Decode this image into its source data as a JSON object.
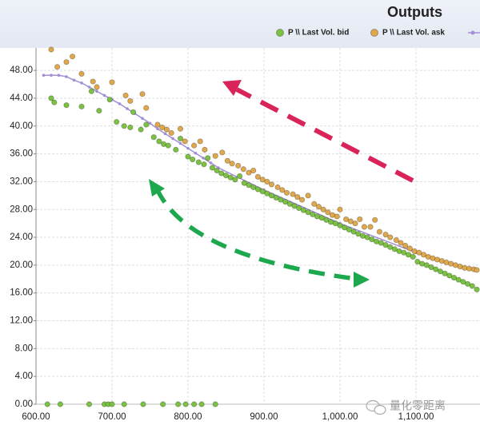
{
  "chart_data": {
    "type": "scatter",
    "title": "Outputs",
    "xlim": [
      600,
      1180
    ],
    "ylim": [
      0,
      51
    ],
    "grid": true,
    "xticks": [
      {
        "value": 600,
        "label": "600.00"
      },
      {
        "value": 700,
        "label": "700.00"
      },
      {
        "value": 800,
        "label": "800.00"
      },
      {
        "value": 900,
        "label": "900.00"
      },
      {
        "value": 1000,
        "label": "1,000.00"
      },
      {
        "value": 1100,
        "label": "1,100.00"
      }
    ],
    "yticks": [
      {
        "value": 0,
        "label": "0.00"
      },
      {
        "value": 4,
        "label": "4.00"
      },
      {
        "value": 8,
        "label": "8.00"
      },
      {
        "value": 12,
        "label": "12.00"
      },
      {
        "value": 16,
        "label": "16.00"
      },
      {
        "value": 20,
        "label": "20.00"
      },
      {
        "value": 24,
        "label": "24.00"
      },
      {
        "value": 28,
        "label": "28.00"
      },
      {
        "value": 32,
        "label": "32.00"
      },
      {
        "value": 36,
        "label": "36.00"
      },
      {
        "value": 40,
        "label": "40.00"
      },
      {
        "value": 44,
        "label": "44.00"
      },
      {
        "value": 48,
        "label": "48.00"
      }
    ],
    "watermark": "量化零距离",
    "series": [
      {
        "type": "line",
        "color": "#a28fd6",
        "x": [
          610,
          620,
          630,
          640,
          650,
          660,
          670,
          680,
          690,
          700,
          710,
          720,
          730,
          740,
          750,
          760,
          770,
          780,
          790,
          800,
          810,
          820,
          830,
          840,
          900,
          1000,
          1100,
          1180
        ],
        "values": [
          47.3,
          47.3,
          47.3,
          47.1,
          46.6,
          46.2,
          45.6,
          45,
          44.4,
          43.8,
          43.2,
          42.5,
          41.8,
          41.1,
          40.4,
          39.6,
          38.9,
          38.2,
          37.5,
          36.8,
          36.1,
          35.4,
          34.7,
          34,
          30.8,
          26,
          21.8,
          19.2
        ]
      },
      {
        "type": "scatter",
        "name": "P \\\\ Last Vol. bid",
        "color": "#7cc242",
        "x": [
          620,
          624,
          640,
          660,
          673,
          683,
          697,
          706,
          716,
          724,
          728,
          738,
          745,
          755,
          762,
          768,
          774,
          784,
          790,
          800,
          806,
          814,
          821,
          826,
          832,
          838,
          844,
          850,
          856,
          862,
          868,
          874,
          880,
          886,
          892,
          898,
          904,
          910,
          916,
          922,
          928,
          934,
          940,
          946,
          952,
          958,
          964,
          970,
          976,
          982,
          988,
          994,
          1000,
          1006,
          1012,
          1018,
          1024,
          1030,
          1036,
          1042,
          1048,
          1054,
          1060,
          1066,
          1072,
          1078,
          1084,
          1090,
          1096,
          1102,
          1108,
          1114,
          1120,
          1126,
          1132,
          1138,
          1144,
          1150,
          1156,
          1162,
          1168,
          1174,
          1180,
          615,
          632,
          670,
          690,
          695,
          700,
          716,
          741,
          767,
          787,
          797,
          808,
          818,
          836
        ],
        "values": [
          44,
          43.4,
          43,
          42.8,
          45,
          42.2,
          43.8,
          40.6,
          40,
          39.8,
          42,
          39.5,
          40.2,
          38.4,
          37.8,
          37.4,
          37.2,
          36.6,
          38.2,
          35.6,
          35.2,
          34.8,
          34.5,
          35.4,
          34,
          33.6,
          33.2,
          32.9,
          32.6,
          32.3,
          32.8,
          31.8,
          31.5,
          31.2,
          30.9,
          30.6,
          30.3,
          30,
          29.7,
          29.4,
          29.1,
          28.8,
          28.5,
          28.2,
          27.9,
          27.6,
          27.3,
          27,
          26.8,
          26.5,
          26.2,
          26,
          25.7,
          25.4,
          25.1,
          24.8,
          24.5,
          24.2,
          24,
          23.7,
          23.4,
          23.2,
          22.9,
          22.6,
          22.3,
          22,
          21.8,
          21.5,
          21.2,
          20.5,
          20.2,
          20,
          19.7,
          19.4,
          19.1,
          18.8,
          18.5,
          18.2,
          17.9,
          17.6,
          17.3,
          17,
          16.5,
          0,
          0,
          0,
          0,
          0,
          0,
          0,
          0,
          0,
          0,
          0,
          0,
          0,
          0
        ]
      },
      {
        "type": "scatter",
        "name": "P \\\\ Last Vol. ask",
        "color": "#dfa84c",
        "x": [
          620,
          628,
          640,
          648,
          660,
          675,
          680,
          700,
          718,
          724,
          740,
          745,
          760,
          766,
          772,
          778,
          790,
          796,
          808,
          816,
          822,
          836,
          845,
          852,
          858,
          866,
          873,
          880,
          886,
          892,
          898,
          904,
          910,
          918,
          924,
          930,
          938,
          944,
          950,
          958,
          966,
          972,
          978,
          984,
          990,
          996,
          1000,
          1008,
          1014,
          1020,
          1026,
          1032,
          1040,
          1046,
          1052,
          1060,
          1066,
          1074,
          1080,
          1086,
          1092,
          1098,
          1104,
          1110,
          1116,
          1122,
          1128,
          1134,
          1140,
          1146,
          1152,
          1158,
          1164,
          1170,
          1176,
          1180
        ],
        "values": [
          51,
          48.5,
          49.2,
          50,
          47.5,
          46.4,
          45.6,
          46.3,
          44.4,
          43.6,
          44.6,
          42.6,
          40.2,
          39.8,
          39.5,
          39,
          39.6,
          37.8,
          37.2,
          37.8,
          36.6,
          35.7,
          36.2,
          35,
          34.6,
          34.3,
          33.8,
          33.3,
          33.6,
          32.7,
          32.3,
          32,
          31.6,
          31.2,
          30.8,
          30.4,
          30.2,
          29.8,
          29.4,
          30,
          28.8,
          28.4,
          28,
          27.6,
          27.2,
          27,
          28,
          26.6,
          26.3,
          26,
          26.6,
          25.5,
          25.5,
          26.5,
          24.8,
          24.4,
          24,
          23.6,
          23.2,
          22.8,
          22.4,
          22,
          21.8,
          21.5,
          21.2,
          21,
          20.8,
          20.6,
          20.4,
          20.2,
          20,
          19.8,
          19.6,
          19.5,
          19.4,
          19.3
        ]
      }
    ]
  }
}
